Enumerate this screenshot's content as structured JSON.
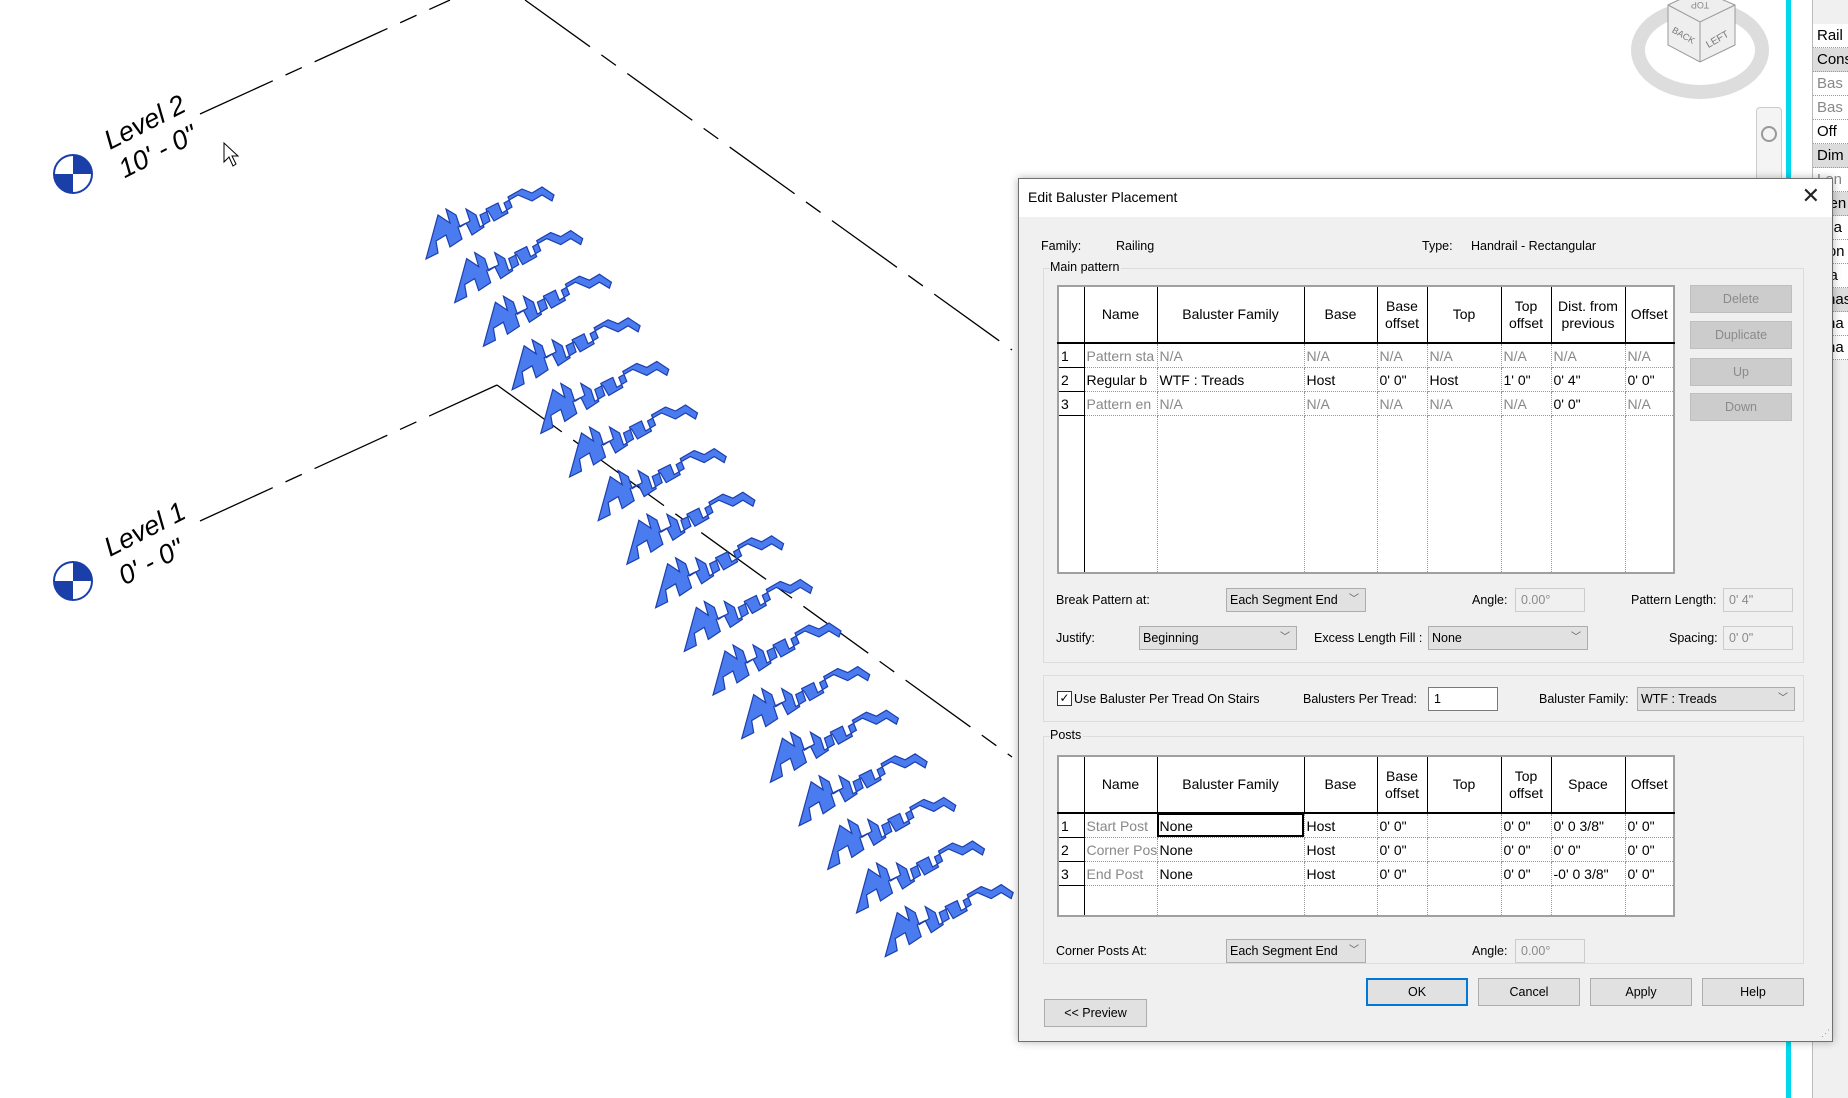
{
  "viewport": {
    "levels": [
      {
        "name": "Level 2",
        "elevation": "10' - 0\""
      },
      {
        "name": "Level 1",
        "elevation": "0' - 0\""
      }
    ],
    "baluster_color": "#4a7bef",
    "viewcube": {
      "top": "TOP",
      "back": "BACK",
      "left": "LEFT"
    },
    "accent_line_color": "#00d8f0"
  },
  "properties_panel": {
    "rows": [
      {
        "label": "Rail",
        "kind": "item"
      },
      {
        "label": "Cons",
        "kind": "hdr"
      },
      {
        "label": "Bas",
        "kind": "grey"
      },
      {
        "label": "Bas",
        "kind": "grey"
      },
      {
        "label": "Off",
        "kind": "item"
      },
      {
        "label": "Dim",
        "kind": "hdr"
      },
      {
        "label": "Len",
        "kind": "grey"
      },
      {
        "label": "Iden",
        "kind": "hdr"
      },
      {
        "label": "Ima",
        "kind": "item"
      },
      {
        "label": "Con",
        "kind": "item"
      },
      {
        "label": "Ma",
        "kind": "item"
      },
      {
        "label": "Phas",
        "kind": "hdr"
      },
      {
        "label": "Pha",
        "kind": "item"
      },
      {
        "label": "Pha",
        "kind": "item"
      }
    ]
  },
  "dialog": {
    "title": "Edit Baluster Placement",
    "close_icon": "close-icon",
    "family_label": "Family:",
    "family_value": "Railing",
    "type_label": "Type:",
    "type_value": "Handrail - Rectangular",
    "main_pattern": {
      "label": "Main pattern",
      "columns": [
        "",
        "Name",
        "Baluster Family",
        "Base",
        "Base offset",
        "Top",
        "Top offset",
        "Dist. from previous",
        "Offset"
      ],
      "rows": [
        {
          "n": "1",
          "cells": [
            "Pattern sta",
            "N/A",
            "N/A",
            "N/A",
            "N/A",
            "N/A",
            "N/A",
            "N/A"
          ],
          "disabled": [
            true,
            true,
            true,
            true,
            true,
            true,
            true,
            true
          ]
        },
        {
          "n": "2",
          "cells": [
            "Regular b",
            "WTF : Treads",
            "Host",
            "0'  0\"",
            "Host",
            "1'  0\"",
            "0'  4\"",
            "0'  0\""
          ],
          "disabled": [
            false,
            false,
            false,
            false,
            false,
            false,
            false,
            false
          ]
        },
        {
          "n": "3",
          "cells": [
            "Pattern en",
            "N/A",
            "N/A",
            "N/A",
            "N/A",
            "N/A",
            "0'  0\"",
            "N/A"
          ],
          "disabled": [
            true,
            true,
            true,
            true,
            true,
            true,
            false,
            true
          ]
        }
      ],
      "empty_rows": 1,
      "buttons": {
        "delete": "Delete",
        "duplicate": "Duplicate",
        "up": "Up",
        "down": "Down"
      },
      "break_pattern_label": "Break Pattern at:",
      "break_pattern_value": "Each Segment End",
      "angle_label": "Angle:",
      "angle_value": "0.00°",
      "pattern_length_label": "Pattern Length:",
      "pattern_length_value": "0'  4\"",
      "justify_label": "Justify:",
      "justify_value": "Beginning",
      "excess_label": "Excess Length Fill :",
      "excess_value": "None",
      "spacing_label": "Spacing:",
      "spacing_value": "0'  0\""
    },
    "tread": {
      "checkbox_label": "Use Baluster Per Tread On Stairs",
      "checked": true,
      "per_tread_label": "Balusters Per Tread:",
      "per_tread_value": "1",
      "family_label": "Baluster Family:",
      "family_value": "WTF : Treads"
    },
    "posts": {
      "label": "Posts",
      "columns": [
        "",
        "Name",
        "Baluster Family",
        "Base",
        "Base offset",
        "Top",
        "Top offset",
        "Space",
        "Offset"
      ],
      "rows": [
        {
          "n": "1",
          "cells": [
            "Start Post",
            "None",
            "Host",
            "0'  0\"",
            "",
            "0'  0\"",
            "0'  0 3/8\"",
            "0'  0\""
          ],
          "disabled": [
            true,
            false,
            false,
            false,
            false,
            false,
            false,
            false
          ]
        },
        {
          "n": "2",
          "cells": [
            "Corner Pos",
            "None",
            "Host",
            "0'  0\"",
            "",
            "0'  0\"",
            "0'  0\"",
            "0'  0\""
          ],
          "disabled": [
            true,
            false,
            false,
            false,
            false,
            false,
            false,
            false
          ]
        },
        {
          "n": "3",
          "cells": [
            "End Post",
            "None",
            "Host",
            "0'  0\"",
            "",
            "0'  0\"",
            "-0'  0 3/8\"",
            "0'  0\""
          ],
          "disabled": [
            true,
            false,
            false,
            false,
            false,
            false,
            false,
            false
          ]
        }
      ],
      "corner_label": "Corner Posts At:",
      "corner_value": "Each Segment End",
      "angle_label": "Angle:",
      "angle_value": "0.00°"
    },
    "buttons": {
      "ok": "OK",
      "cancel": "Cancel",
      "apply": "Apply",
      "help": "Help",
      "preview": "<< Preview"
    }
  }
}
